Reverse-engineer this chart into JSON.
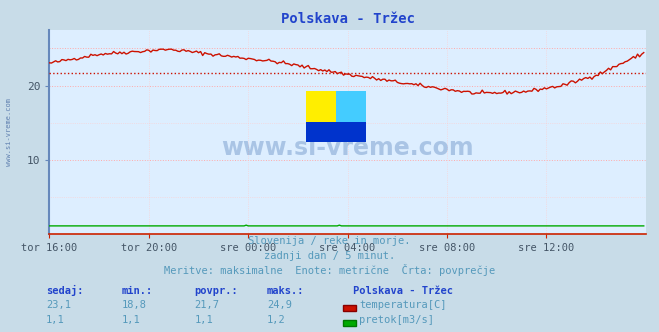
{
  "title": "Polskava - Tržec",
  "bg_color": "#c8dce8",
  "plot_bg_color": "#ddeeff",
  "grid_h_color": "#ffaaaa",
  "grid_v_color": "#ffcccc",
  "spine_left_color": "#6688bb",
  "spine_bottom_color": "#cc2200",
  "title_color": "#2244cc",
  "tick_color": "#445566",
  "temp_color": "#cc1100",
  "flow_color": "#00aa00",
  "avg_line_color": "#cc1100",
  "text_color": "#5599bb",
  "hdr_color": "#2244cc",
  "val_color": "#5599bb",
  "x_labels": [
    "tor 16:00",
    "tor 20:00",
    "sre 00:00",
    "sre 04:00",
    "sre 08:00",
    "sre 12:00"
  ],
  "x_ticks_pos": [
    0,
    48,
    96,
    144,
    192,
    240
  ],
  "y_ticks": [
    10,
    20
  ],
  "ylim": [
    0,
    27.5
  ],
  "xlim": [
    0,
    288
  ],
  "n_points": 288,
  "temp_avg": 21.7,
  "temp_min": 18.8,
  "temp_max": 24.9,
  "subtitle1": "Slovenija / reke in morje.",
  "subtitle2": "zadnji dan / 5 minut.",
  "subtitle3": "Meritve: maksimalne  Enote: metrične  Črta: povprečje",
  "legend_title": "Polskava - Tržec",
  "legend_temp": "temperatura[C]",
  "legend_flow": "pretok[m3/s]",
  "table_headers": [
    "sedaj:",
    "min.:",
    "povpr.:",
    "maks.:"
  ],
  "table_temp": [
    "23,1",
    "18,8",
    "21,7",
    "24,9"
  ],
  "table_flow": [
    "1,1",
    "1,1",
    "1,1",
    "1,2"
  ]
}
